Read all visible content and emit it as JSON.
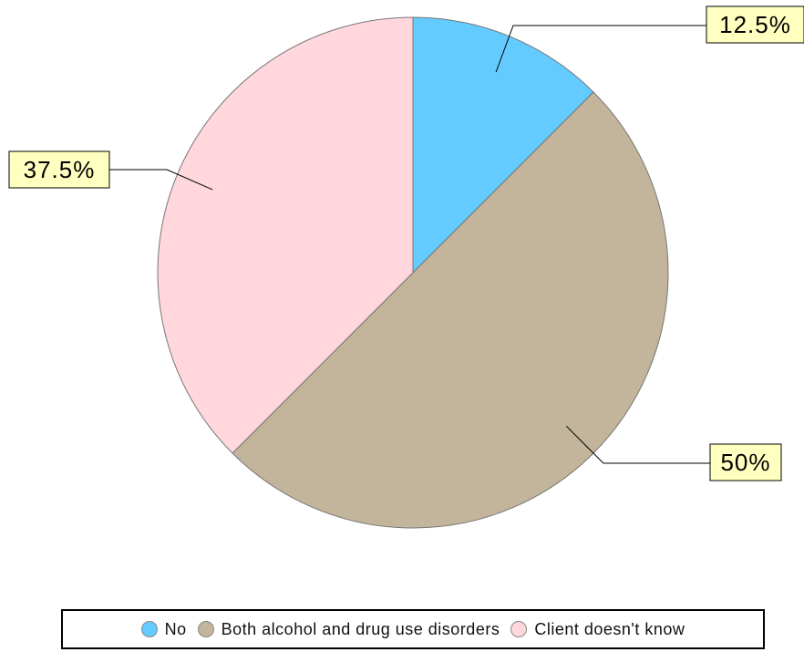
{
  "chart_data": {
    "type": "pie",
    "title": "",
    "series": [
      {
        "name": "No",
        "value": 12.5,
        "label": "12.5%",
        "color": "#63CBFF"
      },
      {
        "name": "Both alcohol and drug use disorders",
        "value": 50,
        "label": "50%",
        "color": "#C2B59B"
      },
      {
        "name": "Client doesn't know",
        "value": 37.5,
        "label": "37.5%",
        "color": "#FFD7DC"
      }
    ],
    "legend_position": "bottom",
    "label_box_color": "#FFFFC0"
  }
}
